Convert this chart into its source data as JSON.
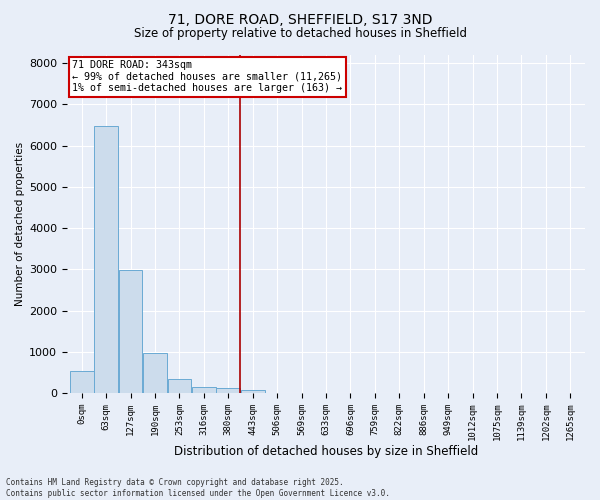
{
  "title_line1": "71, DORE ROAD, SHEFFIELD, S17 3ND",
  "title_line2": "Size of property relative to detached houses in Sheffield",
  "xlabel": "Distribution of detached houses by size in Sheffield",
  "ylabel": "Number of detached properties",
  "bar_color": "#ccdcec",
  "bar_edge_color": "#6aaad4",
  "bin_labels": [
    "0sqm",
    "63sqm",
    "127sqm",
    "190sqm",
    "253sqm",
    "316sqm",
    "380sqm",
    "443sqm",
    "506sqm",
    "569sqm",
    "633sqm",
    "696sqm",
    "759sqm",
    "822sqm",
    "886sqm",
    "949sqm",
    "1012sqm",
    "1075sqm",
    "1139sqm",
    "1202sqm",
    "1265sqm"
  ],
  "bar_heights": [
    530,
    6480,
    2980,
    960,
    330,
    150,
    120,
    65,
    0,
    0,
    0,
    0,
    0,
    0,
    0,
    0,
    0,
    0,
    0,
    0,
    0
  ],
  "ylim": [
    0,
    8200
  ],
  "yticks": [
    0,
    1000,
    2000,
    3000,
    4000,
    5000,
    6000,
    7000,
    8000
  ],
  "annotation_title": "71 DORE ROAD: 343sqm",
  "annotation_line1": "← 99% of detached houses are smaller (11,265)",
  "annotation_line2": "1% of semi-detached houses are larger (163) →",
  "annotation_box_color": "#ffffff",
  "annotation_border_color": "#cc0000",
  "vline_color": "#aa0000",
  "vline_x": 6.5,
  "bg_color": "#e8eef8",
  "grid_color": "#ffffff",
  "footer_line1": "Contains HM Land Registry data © Crown copyright and database right 2025.",
  "footer_line2": "Contains public sector information licensed under the Open Government Licence v3.0."
}
